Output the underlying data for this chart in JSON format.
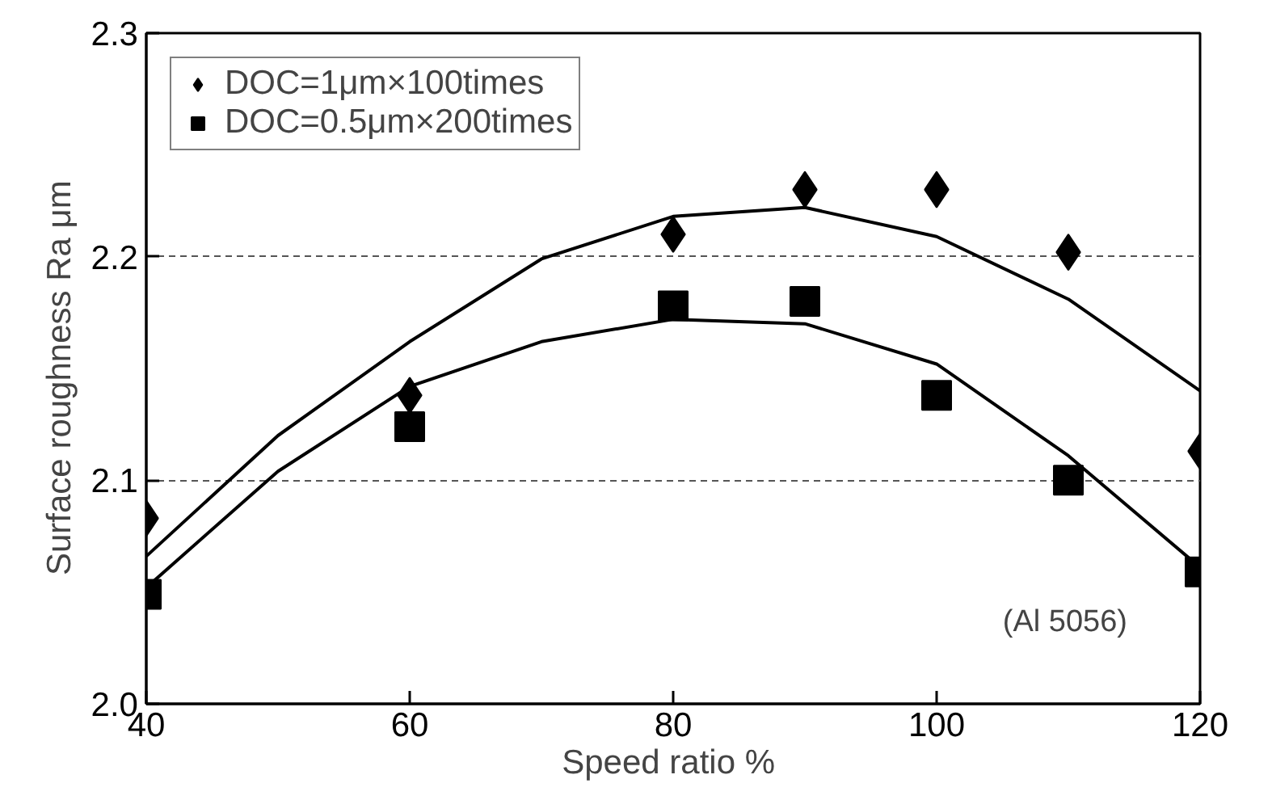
{
  "chart_data": {
    "type": "scatter",
    "xlabel": "Speed ratio  %",
    "ylabel": "Surface roughness  Ra  μm",
    "x": [
      40,
      60,
      80,
      90,
      100,
      110,
      120
    ],
    "series": [
      {
        "name": "DOC=1μm×100times",
        "color": "#000000",
        "marker": "diamond",
        "values": [
          2.083,
          2.138,
          2.21,
          2.23,
          2.23,
          2.202,
          2.113
        ]
      },
      {
        "name": "DOC=0.5μm×200times",
        "color": "#000000",
        "marker": "square",
        "values": [
          2.049,
          2.124,
          2.178,
          2.18,
          2.138,
          2.1,
          2.059
        ]
      },
      {
        "type": "line",
        "color": "#000000",
        "x": [
          40,
          50,
          60,
          70,
          80,
          90,
          100,
          110,
          120
        ],
        "values": [
          2.066,
          2.12,
          2.162,
          2.199,
          2.218,
          2.222,
          2.209,
          2.181,
          2.14
        ]
      },
      {
        "type": "line",
        "color": "#000000",
        "x": [
          40,
          50,
          60,
          70,
          80,
          90,
          100,
          110,
          120
        ],
        "values": [
          2.052,
          2.104,
          2.142,
          2.162,
          2.172,
          2.17,
          2.152,
          2.111,
          2.061
        ]
      }
    ],
    "xlim": [
      40,
      120
    ],
    "xticks": [
      40,
      60,
      80,
      100,
      120
    ],
    "ylim": [
      2.0,
      2.3
    ],
    "yticks": [
      {
        "value": 2.0,
        "label": "2.0"
      },
      {
        "value": 2.1,
        "label": "2.1"
      },
      {
        "value": 2.2,
        "label": "2.2"
      },
      {
        "value": 2.3,
        "label": "2.3"
      }
    ],
    "grid": "y",
    "legend": "top left",
    "annotations": [
      "(Al 5056)"
    ]
  }
}
